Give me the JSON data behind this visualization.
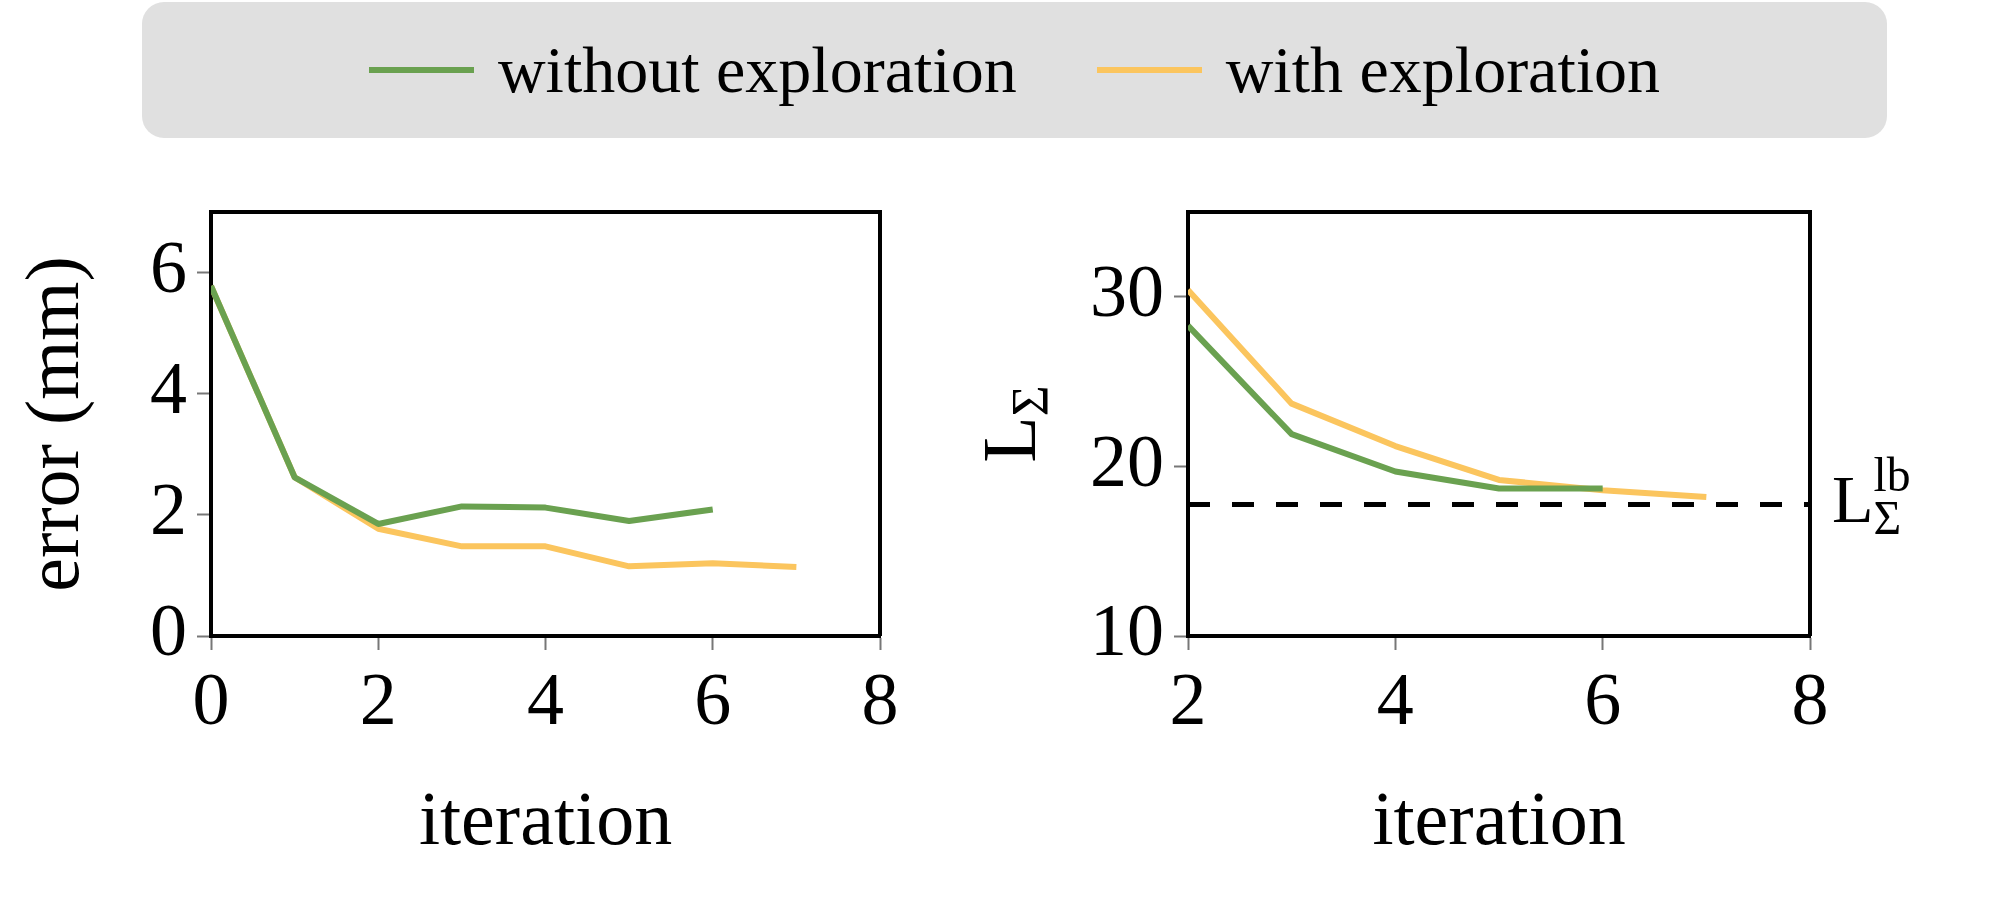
{
  "chart_data": [
    {
      "type": "line",
      "xlabel": "iteration",
      "ylabel": "error (mm)",
      "xlim": [
        0,
        8
      ],
      "xticks": [
        0,
        2,
        4,
        6,
        8
      ],
      "ylim": [
        0,
        7
      ],
      "yticks": [
        0,
        2,
        4,
        6
      ],
      "legend": "top",
      "grid": false,
      "marker": "none",
      "line_style": "solid",
      "series": [
        {
          "name": "without exploration",
          "color": "#6aa150",
          "x": [
            0,
            1,
            2,
            3,
            4,
            5,
            6
          ],
          "values": [
            5.78,
            2.62,
            1.85,
            2.14,
            2.12,
            1.9,
            2.09
          ]
        },
        {
          "name": "with exploration",
          "color": "#fbc55e",
          "x": [
            0,
            1,
            2,
            3,
            4,
            5,
            6,
            7
          ],
          "values": [
            5.78,
            2.62,
            1.77,
            1.48,
            1.48,
            1.15,
            1.2,
            1.14
          ]
        }
      ]
    },
    {
      "type": "line",
      "xlabel": "iteration",
      "ylabel": "L$_{Σ}$",
      "xlim": [
        2,
        8
      ],
      "xticks": [
        2,
        4,
        6,
        8
      ],
      "ylim": [
        10,
        35
      ],
      "yticks": [
        10,
        20,
        30
      ],
      "grid": false,
      "marker": "none",
      "line_style": "solid",
      "series": [
        {
          "color": "#6aa150",
          "x": [
            2,
            3,
            4,
            5,
            6
          ],
          "values": [
            28.3,
            21.9,
            19.7,
            18.7,
            18.7
          ]
        },
        {
          "color": "#fbc55e",
          "x": [
            2,
            3,
            4,
            5,
            6,
            7
          ],
          "values": [
            30.4,
            23.7,
            21.2,
            19.2,
            18.6,
            18.2
          ]
        }
      ],
      "ref_lines": [
        {
          "axis": "y",
          "value": 17.75,
          "label": "L$^{lb}$$_{Σ}$",
          "color": "#000000",
          "line_style": "dashed"
        }
      ]
    }
  ]
}
